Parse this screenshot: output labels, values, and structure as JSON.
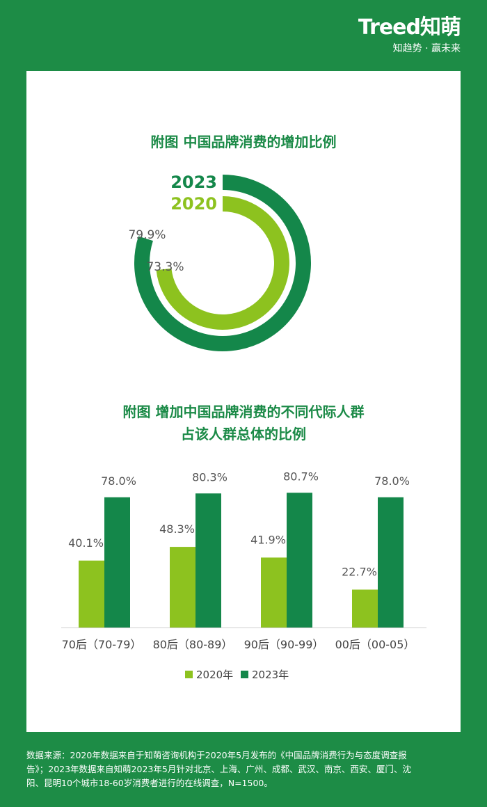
{
  "brand": {
    "logo": "Treed知萌",
    "slogan": "知趋势 · 赢未来"
  },
  "colors": {
    "dark_green": "#14874a",
    "light_green": "#8dc21f",
    "background": "#1d8c46"
  },
  "chart_data": [
    {
      "type": "radial-bar",
      "title": "附图 中国品牌消费的增加比例",
      "series": [
        {
          "name": "2023",
          "value": 79.9,
          "label": "79.9%"
        },
        {
          "name": "2020",
          "value": 73.3,
          "label": "73.3%"
        }
      ],
      "max": 100
    },
    {
      "type": "bar",
      "title": [
        "附图 增加中国品牌消费的不同代际人群",
        "占该人群总体的比例"
      ],
      "categories": [
        "70后（70-79）",
        "80后（80-89）",
        "90后（90-99）",
        "00后（00-05）"
      ],
      "series": [
        {
          "name": "2020年",
          "values": [
            40.1,
            48.3,
            41.9,
            22.7
          ],
          "labels": [
            "40.1%",
            "48.3%",
            "41.9%",
            "22.7%"
          ]
        },
        {
          "name": "2023年",
          "values": [
            78.0,
            80.3,
            80.7,
            78.0
          ],
          "labels": [
            "78.0%",
            "80.3%",
            "80.7%",
            "78.0%"
          ]
        }
      ],
      "ylim": [
        0,
        100
      ],
      "legend": "bottom"
    }
  ],
  "footer": {
    "lines": [
      "数据来源：2020年数据来自于知萌咨询机构于2020年5月发布的《中国品牌消费行为与态度调查报",
      "告》；2023年数据来自知萌2023年5月针对北京、上海、广州、成都、武汉、南京、西安、厦门、沈",
      "阳、昆明10个城市18-60岁消费者进行的在线调查，N=1500。"
    ]
  }
}
